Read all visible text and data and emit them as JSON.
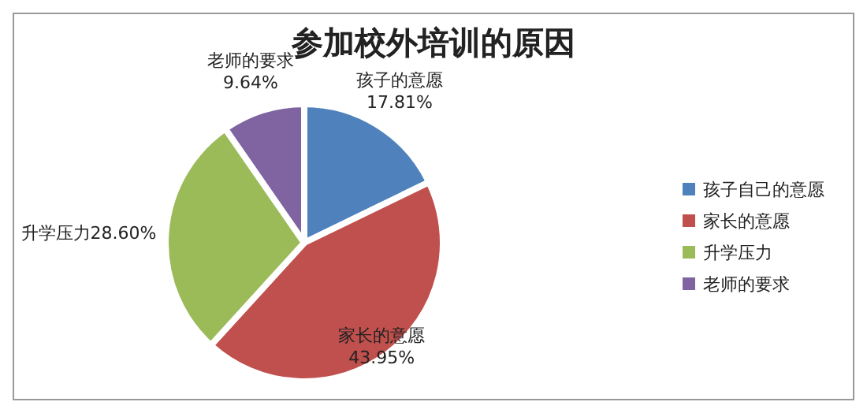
{
  "chart_data": {
    "type": "pie",
    "title": "参加校外培训的原因",
    "categories": [
      "孩子自己的意愿",
      "家长的意愿",
      "升学压力",
      "老师的要求"
    ],
    "values": [
      17.81,
      43.95,
      28.6,
      9.64
    ],
    "colors": [
      "#4f81bd",
      "#c0504d",
      "#9bbb59",
      "#8064a2"
    ],
    "value_labels": [
      "孩子的意愿\n17.81%",
      "家长的意愿\n43.95%",
      "升学压力28.60%",
      "老师的要求\n9.64%"
    ],
    "legend": "right"
  }
}
